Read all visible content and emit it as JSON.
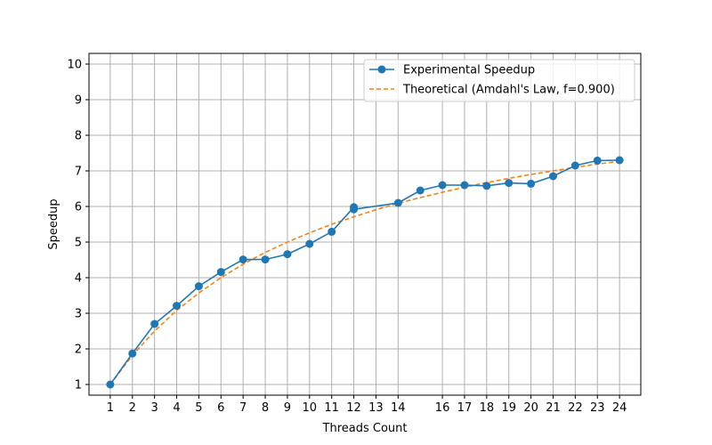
{
  "chart_data": {
    "type": "line",
    "title": "",
    "xlabel": "Threads Count",
    "ylabel": "Speedup",
    "xlim": [
      0.04,
      24.96
    ],
    "ylim": [
      0.7,
      10.3
    ],
    "grid": true,
    "legend_position": "upper-right",
    "x_ticks": [
      "1",
      "2",
      "3",
      "4",
      "5",
      "6",
      "7",
      "8",
      "9",
      "10",
      "11",
      "12",
      "13",
      "14",
      "16",
      "17",
      "18",
      "19",
      "20",
      "21",
      "22",
      "23",
      "24"
    ],
    "y_ticks": [
      "1",
      "2",
      "3",
      "4",
      "5",
      "6",
      "7",
      "8",
      "9",
      "10"
    ],
    "series": [
      {
        "name": "Experimental Speedup",
        "color": "#1f77b4",
        "style": "solid-markers",
        "points": [
          [
            1,
            1.0
          ],
          [
            2,
            1.87
          ],
          [
            3,
            2.7
          ],
          [
            4,
            3.21
          ],
          [
            5,
            3.76
          ],
          [
            6,
            4.16
          ],
          [
            7,
            4.51
          ],
          [
            8,
            4.51
          ],
          [
            9,
            4.66
          ],
          [
            10,
            4.95
          ],
          [
            11,
            5.29
          ],
          [
            12,
            5.98
          ],
          [
            12,
            5.92
          ],
          [
            14,
            6.1
          ],
          [
            15,
            6.45
          ],
          [
            16,
            6.6
          ],
          [
            17,
            6.6
          ],
          [
            18,
            6.58
          ],
          [
            19,
            6.66
          ],
          [
            20,
            6.64
          ],
          [
            21,
            6.85
          ],
          [
            22,
            7.15
          ],
          [
            23,
            7.29
          ],
          [
            24,
            7.3
          ]
        ]
      },
      {
        "name": "Theoretical (Amdahl's Law, f=0.900)",
        "color": "#ff7f0e",
        "style": "dashed",
        "points": [
          [
            1,
            1.0
          ],
          [
            2,
            1.82
          ],
          [
            3,
            2.5
          ],
          [
            4,
            3.08
          ],
          [
            5,
            3.57
          ],
          [
            6,
            4.0
          ],
          [
            7,
            4.38
          ],
          [
            8,
            4.71
          ],
          [
            9,
            5.0
          ],
          [
            10,
            5.26
          ],
          [
            11,
            5.5
          ],
          [
            12,
            5.71
          ],
          [
            13,
            5.91
          ],
          [
            14,
            6.09
          ],
          [
            15,
            6.25
          ],
          [
            16,
            6.4
          ],
          [
            17,
            6.54
          ],
          [
            18,
            6.67
          ],
          [
            19,
            6.79
          ],
          [
            20,
            6.9
          ],
          [
            21,
            7.0
          ],
          [
            22,
            7.1
          ],
          [
            23,
            7.19
          ],
          [
            24,
            7.27
          ]
        ]
      }
    ]
  }
}
